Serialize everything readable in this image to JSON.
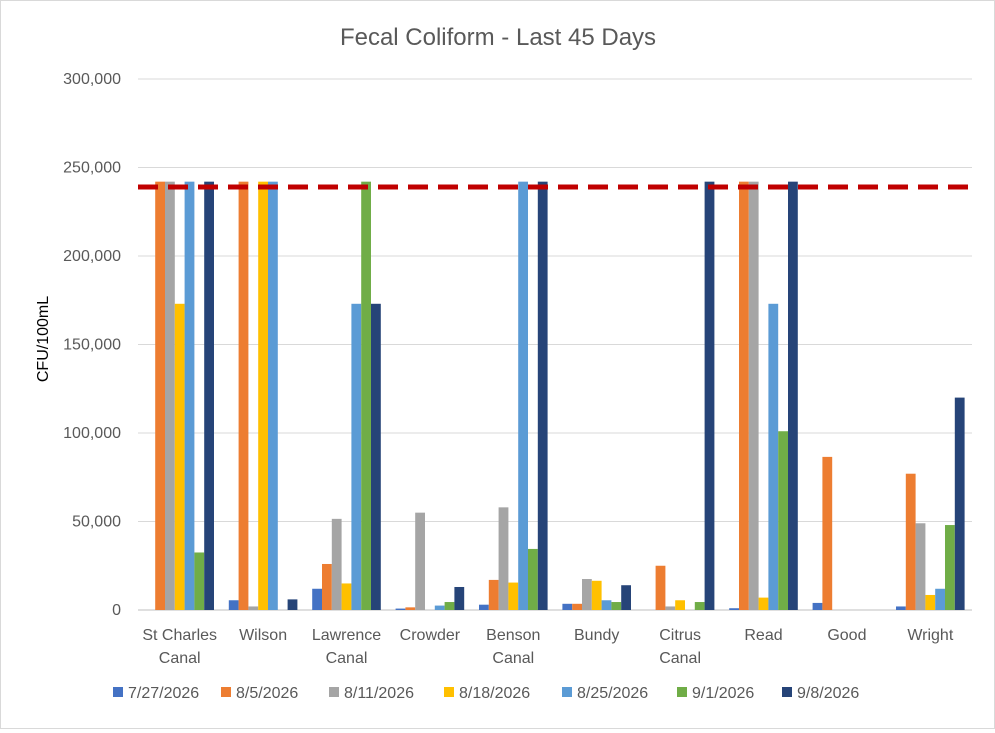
{
  "chart_data": {
    "type": "bar",
    "title": "Fecal Coliform - Last 45 Days",
    "ylabel": "CFU/100mL",
    "xlabel": "",
    "ylim": [
      0,
      300000
    ],
    "y_ticks": [
      "0",
      "50,000",
      "100,000",
      "150,000",
      "200,000",
      "250,000",
      "300,000"
    ],
    "y_tick_values": [
      0,
      50000,
      100000,
      150000,
      200000,
      250000,
      300000
    ],
    "grid": true,
    "legend_position": "bottom",
    "threshold": {
      "value": 239000,
      "color": "#c00000",
      "style": "dashed"
    },
    "categories": [
      [
        "St Charles",
        "Canal"
      ],
      [
        "Wilson"
      ],
      [
        "Lawrence",
        "Canal"
      ],
      [
        "Crowder"
      ],
      [
        "Benson",
        "Canal"
      ],
      [
        "Bundy"
      ],
      [
        "Citrus",
        "Canal"
      ],
      [
        "Read"
      ],
      [
        "Good"
      ],
      [
        "Wright"
      ]
    ],
    "series": [
      {
        "name": "7/27/2026",
        "color": "#4472c4",
        "values": [
          0,
          5500,
          12000,
          800,
          3000,
          3500,
          0,
          1000,
          4000,
          2000
        ]
      },
      {
        "name": "8/5/2026",
        "color": "#ed7d31",
        "values": [
          242000,
          242000,
          26000,
          1500,
          17000,
          3500,
          25000,
          242000,
          86500,
          77000
        ]
      },
      {
        "name": "8/11/2026",
        "color": "#a5a5a5",
        "values": [
          242000,
          2000,
          51500,
          55000,
          58000,
          17500,
          2000,
          242000,
          0,
          49000
        ]
      },
      {
        "name": "8/18/2026",
        "color": "#ffc000",
        "values": [
          173000,
          242000,
          15000,
          0,
          15500,
          16500,
          5500,
          7000,
          0,
          8500
        ]
      },
      {
        "name": "8/25/2026",
        "color": "#5b9bd5",
        "values": [
          242000,
          242000,
          173000,
          2500,
          242000,
          5500,
          0,
          173000,
          0,
          12000
        ]
      },
      {
        "name": "9/1/2026",
        "color": "#70ad47",
        "values": [
          32500,
          0,
          242000,
          4500,
          34500,
          4500,
          4500,
          101000,
          0,
          48000
        ]
      },
      {
        "name": "9/8/2026",
        "color": "#264478",
        "values": [
          242000,
          6000,
          173000,
          13000,
          242000,
          14000,
          242000,
          242000,
          0,
          120000
        ]
      }
    ]
  }
}
